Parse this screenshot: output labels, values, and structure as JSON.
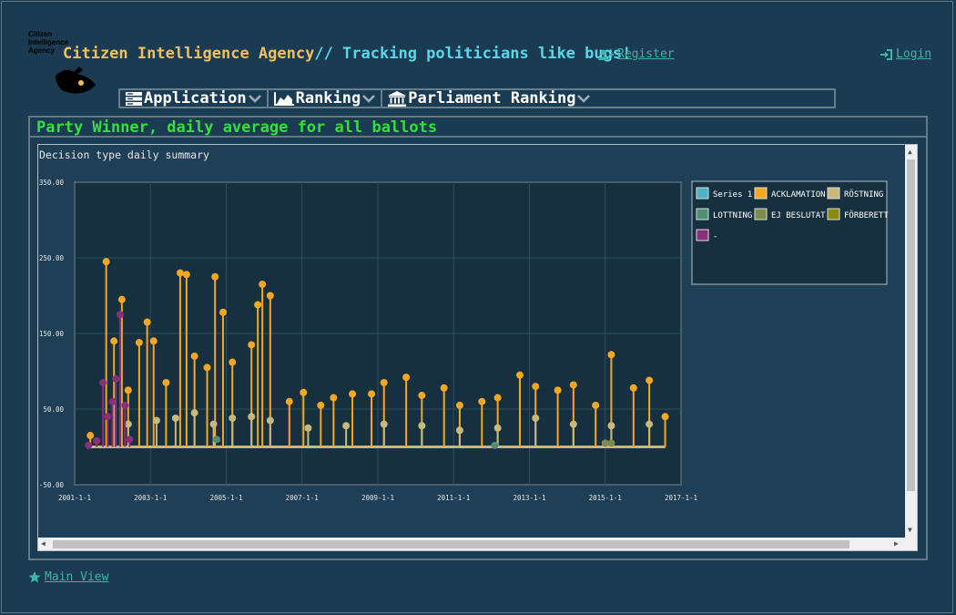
{
  "logo": {
    "line1": "Citizen",
    "line2": "Intelligence",
    "line3": "Agency"
  },
  "header": {
    "title_main": "Citizen Intelligence Agency",
    "title_tag": "// Tracking politicians like bugs!",
    "register": "Register",
    "login": "Login"
  },
  "menu": [
    {
      "label": "Application",
      "icon": "server-icon"
    },
    {
      "label": "Ranking",
      "icon": "area-chart-icon"
    },
    {
      "label": "Parliament Ranking",
      "icon": "institution-icon"
    }
  ],
  "panel": {
    "title": "Party Winner, daily average for all ballots"
  },
  "colors": {
    "series1": "#4bb3c7",
    "acklamation": "#f4a721",
    "rostning": "#c7b97a",
    "lottning": "#4f8f75",
    "ej_beslutat": "#7d8c4a",
    "forberett": "#8a8a10",
    "dash": "#8b2f7a"
  },
  "chart_data": {
    "type": "line",
    "subtitle": "Decision type daily summary",
    "y_ticks": [
      "350.00",
      "250.00",
      "150.00",
      "50.00",
      "-50.00"
    ],
    "x_ticks": [
      "2001-1-1",
      "2003-1-1",
      "2005-1-1",
      "2007-1-1",
      "2009-1-1",
      "2011-1-1",
      "2013-1-1",
      "2015-1-1",
      "2017-1-1"
    ],
    "ylim": [
      -50,
      350
    ],
    "xlim": [
      "2001-01-01",
      "2017-01-01"
    ],
    "grid": true,
    "legend_position": "right",
    "legend": [
      "Series 1",
      "ACKLAMATION",
      "RÖSTNING",
      "LOTTNING",
      "EJ BESLUTAT",
      "FÖRBERETT",
      "-"
    ],
    "series": [
      {
        "name": "ACKLAMATION",
        "points": [
          [
            "2001-06-01",
            15
          ],
          [
            "2001-11-01",
            245
          ],
          [
            "2002-01-15",
            140
          ],
          [
            "2002-04-01",
            195
          ],
          [
            "2002-06-01",
            75
          ],
          [
            "2002-09-15",
            138
          ],
          [
            "2002-12-01",
            165
          ],
          [
            "2003-02-01",
            140
          ],
          [
            "2003-06-01",
            85
          ],
          [
            "2003-10-15",
            230
          ],
          [
            "2003-12-15",
            228
          ],
          [
            "2004-03-01",
            120
          ],
          [
            "2004-07-01",
            105
          ],
          [
            "2004-09-15",
            225
          ],
          [
            "2004-12-01",
            178
          ],
          [
            "2005-03-01",
            112
          ],
          [
            "2005-09-01",
            135
          ],
          [
            "2005-11-01",
            188
          ],
          [
            "2005-12-15",
            215
          ],
          [
            "2006-03-01",
            200
          ],
          [
            "2006-09-01",
            60
          ],
          [
            "2007-01-15",
            72
          ],
          [
            "2007-07-01",
            55
          ],
          [
            "2007-11-01",
            65
          ],
          [
            "2008-05-01",
            70
          ],
          [
            "2008-11-01",
            70
          ],
          [
            "2009-03-01",
            85
          ],
          [
            "2009-10-01",
            92
          ],
          [
            "2010-03-01",
            68
          ],
          [
            "2010-10-01",
            78
          ],
          [
            "2011-03-01",
            55
          ],
          [
            "2011-10-01",
            60
          ],
          [
            "2012-03-01",
            65
          ],
          [
            "2012-10-01",
            95
          ],
          [
            "2013-03-01",
            80
          ],
          [
            "2013-10-01",
            75
          ],
          [
            "2014-03-01",
            82
          ],
          [
            "2014-10-01",
            55
          ],
          [
            "2015-03-01",
            122
          ],
          [
            "2015-10-01",
            78
          ],
          [
            "2016-03-01",
            88
          ],
          [
            "2016-08-01",
            40
          ]
        ]
      },
      {
        "name": "RÖSTNING",
        "points": [
          [
            "2002-06-01",
            30
          ],
          [
            "2003-03-01",
            35
          ],
          [
            "2003-09-01",
            38
          ],
          [
            "2004-03-01",
            45
          ],
          [
            "2004-09-01",
            30
          ],
          [
            "2005-03-01",
            38
          ],
          [
            "2005-09-01",
            40
          ],
          [
            "2006-03-01",
            35
          ],
          [
            "2007-03-01",
            25
          ],
          [
            "2008-03-01",
            28
          ],
          [
            "2009-03-01",
            30
          ],
          [
            "2010-03-01",
            28
          ],
          [
            "2011-03-01",
            22
          ],
          [
            "2012-03-01",
            25
          ],
          [
            "2013-03-01",
            38
          ],
          [
            "2014-03-01",
            30
          ],
          [
            "2015-03-01",
            28
          ],
          [
            "2016-03-01",
            30
          ]
        ]
      },
      {
        "name": "-",
        "points": [
          [
            "2001-05-15",
            2
          ],
          [
            "2001-08-01",
            8
          ],
          [
            "2001-10-01",
            85
          ],
          [
            "2001-11-15",
            40
          ],
          [
            "2002-01-01",
            60
          ],
          [
            "2002-02-01",
            90
          ],
          [
            "2002-03-15",
            175
          ],
          [
            "2002-05-01",
            55
          ],
          [
            "2002-06-15",
            10
          ]
        ]
      },
      {
        "name": "LOTTNING",
        "points": [
          [
            "2004-10-01",
            10
          ],
          [
            "2012-02-01",
            2
          ]
        ]
      },
      {
        "name": "EJ BESLUTAT",
        "points": [
          [
            "2015-01-01",
            5
          ],
          [
            "2015-03-01",
            5
          ]
        ]
      }
    ]
  }
}
